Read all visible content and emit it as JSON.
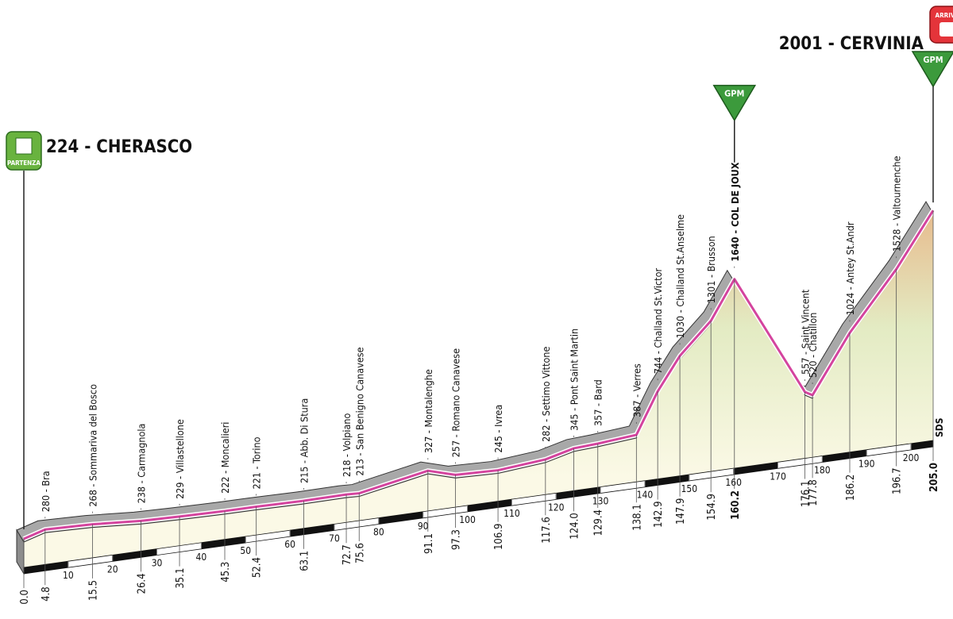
{
  "chart_data": {
    "type": "profile",
    "x": [
      0.0,
      4.8,
      15.5,
      26.4,
      35.1,
      45.3,
      52.4,
      63.1,
      72.7,
      75.6,
      91.1,
      97.3,
      106.9,
      117.6,
      124.0,
      129.4,
      138.1,
      142.9,
      147.9,
      154.9,
      160.2,
      176.1,
      177.8,
      186.2,
      196.7,
      205.0
    ],
    "x_labels": [
      "0.0",
      "4.8",
      "15.5",
      "26.4",
      "35.1",
      "45.3",
      "52.4",
      "63.1",
      "72.7",
      "75.6",
      "91.1",
      "97.3",
      "106.9",
      "117.6",
      "124.0",
      "129.4",
      "138.1",
      "142.9",
      "147.9",
      "154.9",
      "160.2",
      "176.1",
      "177.8",
      "186.2",
      "196.7",
      "205.0"
    ],
    "values": [
      224,
      280,
      268,
      238,
      229,
      222,
      221,
      215,
      218,
      213,
      327,
      257,
      245,
      282,
      345,
      357,
      387,
      744,
      1030,
      1301,
      1640,
      557,
      520,
      1024,
      1528,
      2001
    ],
    "value_labels": [
      "224 - CHERASCO",
      "280 - Bra",
      "268 - Sommariva del Bosco",
      "238 - Carmagnola",
      "229 - Villastellone",
      "222 - Moncalieri",
      "221 - Torino",
      "215 - Abb. Di Stura",
      "218 - Volpiano",
      "213 - San Benigno Canavese",
      "327 - Montalenghe",
      "257 - Romano Canavese",
      "245 - Ivrea",
      "282 - Settimo Vittone",
      "345 - Pont Saint Martin",
      "357 - Bard",
      "387 - Verres",
      "744 - Challand St.Victor",
      "1030 - Challand St.Anselme",
      "1301 - Brusson",
      "1640 - COL DE JOUX",
      "557 - Saint Vincent",
      "520 - Chatillon",
      "1024 - Antey St.Andr",
      "1528 - Valtournenche",
      "2001 - CERVINIA"
    ],
    "gpm": [
      false,
      false,
      false,
      false,
      false,
      false,
      false,
      false,
      false,
      false,
      false,
      false,
      false,
      false,
      false,
      false,
      false,
      false,
      false,
      false,
      true,
      false,
      false,
      false,
      false,
      true
    ],
    "xlim": [
      0,
      205
    ],
    "ylim": [
      0,
      2100
    ],
    "xticks": [
      10,
      20,
      30,
      40,
      50,
      60,
      70,
      80,
      90,
      100,
      110,
      120,
      130,
      140,
      150,
      160,
      170,
      180,
      190,
      200
    ],
    "markers": {
      "start": "PARTENZA",
      "finish": "ARRIVO",
      "climb": "GPM",
      "sprint": "SDS"
    }
  }
}
